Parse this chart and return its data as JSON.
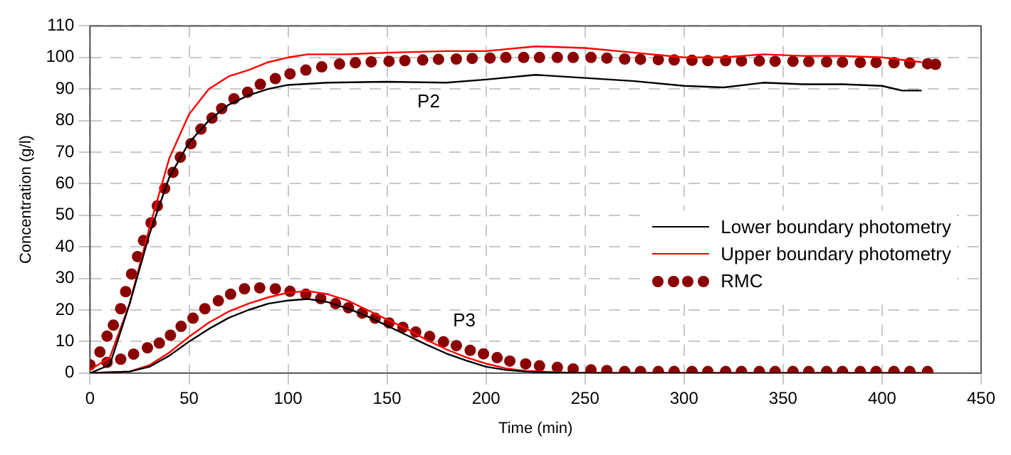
{
  "chart_data": {
    "type": "line",
    "xlabel": "Time (min)",
    "ylabel": "Concentration (g/l)",
    "xlim": [
      0,
      450
    ],
    "xticks": [
      0,
      50,
      100,
      150,
      200,
      250,
      300,
      350,
      400,
      450
    ],
    "ylim": [
      0,
      110
    ],
    "yticks": [
      0,
      10,
      20,
      30,
      40,
      50,
      60,
      70,
      80,
      90,
      100,
      110
    ],
    "grid": true,
    "legend": "right",
    "annotations": [
      "P2",
      "P3"
    ],
    "series": [
      {
        "name": "Lower boundary photometry",
        "color": "#000000",
        "marker": "none",
        "x": [
          0,
          10,
          20,
          30,
          40,
          50,
          60,
          70,
          80,
          90,
          100,
          120,
          150,
          180,
          200,
          225,
          250,
          275,
          300,
          320,
          340,
          360,
          380,
          400,
          410,
          420
        ],
        "values": [
          0,
          2.6,
          22,
          44,
          62,
          73,
          80,
          85,
          88,
          90,
          91.3,
          92,
          92.3,
          92,
          93,
          94.5,
          93.5,
          92.5,
          91,
          90.5,
          92,
          91.5,
          91.5,
          91,
          89.5,
          89.5
        ]
      },
      {
        "name": "Upper boundary photometry",
        "color": "#ff0000",
        "marker": "none",
        "x": [
          0,
          10,
          20,
          30,
          40,
          50,
          60,
          70,
          80,
          90,
          100,
          110,
          130,
          150,
          180,
          200,
          225,
          250,
          275,
          300,
          320,
          340,
          360,
          380,
          400,
          420
        ],
        "values": [
          1,
          5,
          22,
          46,
          68,
          82,
          90,
          94,
          96,
          98.5,
          100,
          101,
          101,
          101.5,
          102,
          102,
          103.5,
          103,
          101.5,
          100,
          100,
          101,
          100.5,
          100.5,
          100,
          98.5
        ]
      },
      {
        "name": "RMC",
        "type": "scatter",
        "color": "#8b0000",
        "marker": "circle",
        "x": [
          0,
          5,
          8.6,
          11.8,
          15.5,
          18,
          21,
          24,
          27,
          30.8,
          34,
          37.7,
          41.9,
          45.6,
          51,
          56,
          61.6,
          66.5,
          72.7,
          79.6,
          86,
          93.6,
          101,
          109,
          117,
          126,
          134,
          142,
          151,
          159,
          168,
          176,
          185,
          193,
          202,
          210,
          219,
          227,
          236,
          244,
          253,
          261,
          270,
          278,
          287,
          295,
          304,
          312,
          321,
          329,
          338,
          346,
          355,
          363,
          372,
          380,
          389,
          397,
          406,
          414,
          423,
          427
        ],
        "values": [
          2.6,
          6.7,
          11.7,
          15.2,
          20.4,
          25.8,
          31.4,
          36.9,
          42,
          47.6,
          53,
          58.5,
          63.6,
          68.4,
          72.7,
          77.3,
          80.8,
          83.8,
          86.9,
          89,
          91.5,
          93.3,
          94.8,
          96,
          97,
          97.9,
          98.3,
          98.6,
          98.8,
          99,
          99.2,
          99.4,
          99.5,
          99.7,
          99.8,
          100,
          100,
          100,
          100,
          100,
          100,
          99.8,
          99.5,
          99.4,
          99.3,
          99.2,
          99.1,
          99,
          99,
          98.9,
          98.9,
          98.8,
          98.8,
          98.7,
          98.6,
          98.5,
          98.4,
          98.4,
          98.3,
          98.2,
          98,
          97.8
        ]
      },
      {
        "color": "#000000",
        "marker": "none",
        "x": [
          0,
          20,
          30,
          40,
          50,
          60,
          70,
          80,
          90,
          100,
          110,
          120,
          130,
          140,
          150,
          160,
          170,
          180,
          190,
          200,
          210,
          220,
          230,
          260,
          420
        ],
        "values": [
          0,
          0.5,
          2,
          5.5,
          10,
          14,
          17.5,
          20,
          22,
          23,
          23.5,
          22.5,
          20.5,
          18,
          15,
          12,
          9,
          6.2,
          4,
          2,
          1,
          0.5,
          0.2,
          0,
          0
        ]
      },
      {
        "color": "#ff0000",
        "marker": "none",
        "x": [
          0,
          20,
          30,
          40,
          50,
          60,
          70,
          80,
          90,
          100,
          110,
          120,
          130,
          140,
          150,
          160,
          170,
          180,
          190,
          200,
          210,
          220,
          240,
          260,
          420
        ],
        "values": [
          0,
          0.5,
          2.5,
          6.5,
          11.5,
          16,
          19.5,
          22,
          24,
          25.5,
          26,
          25,
          23,
          20,
          17,
          14,
          10.5,
          7.5,
          5,
          3,
          1.5,
          0.7,
          0.2,
          0,
          0
        ]
      },
      {
        "type": "scatter",
        "color": "#8b0000",
        "marker": "circle",
        "x": [
          8.6,
          15.5,
          22,
          29,
          35,
          40.6,
          46,
          52,
          58,
          64.8,
          71,
          78,
          85.7,
          93.6,
          101,
          109,
          116.5,
          124,
          130.5,
          137.5,
          144,
          151,
          158,
          164.5,
          171.5,
          178.5,
          185,
          192,
          198.7,
          205.6,
          212,
          220,
          227,
          236,
          244,
          253,
          261,
          270,
          278,
          287,
          295,
          304,
          312,
          321,
          329,
          338,
          346,
          355,
          363,
          372,
          380,
          389,
          397,
          406,
          414,
          423
        ],
        "values": [
          3.4,
          4.4,
          6,
          8,
          9.5,
          12,
          14.8,
          17.4,
          20.4,
          22.9,
          25,
          26.7,
          27,
          26.7,
          25.9,
          25,
          23.6,
          22,
          20.7,
          19,
          17.4,
          15.9,
          14.5,
          13,
          11.6,
          9.9,
          8.7,
          7.2,
          6.1,
          4.9,
          3.8,
          2.9,
          2.3,
          1.8,
          1.3,
          1,
          0.8,
          0.5,
          0.5,
          0.5,
          0.5,
          0.5,
          0.5,
          0.5,
          0.5,
          0.5,
          0.5,
          0.5,
          0.5,
          0.5,
          0.5,
          0.5,
          0.5,
          0.5,
          0.5,
          0.5
        ]
      }
    ]
  }
}
